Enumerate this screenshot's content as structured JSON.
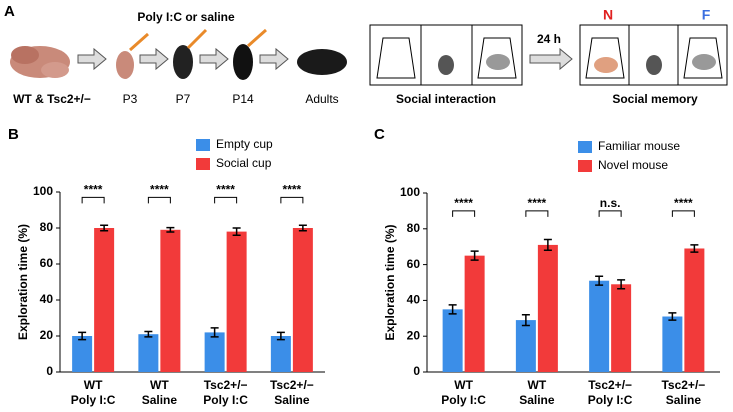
{
  "panel_a": {
    "label": "A",
    "treatment": "Poly I:C or saline",
    "genotype": "WT & Tsc2+/−",
    "ages": [
      "P3",
      "P7",
      "P14",
      "Adults"
    ],
    "interaction": "Social interaction",
    "interval": "24 h",
    "novel": "N",
    "familiar": "F",
    "memory": "Social memory"
  },
  "chart_data": [
    {
      "type": "bar",
      "panel": "B",
      "ylabel": "Exploration time (%)",
      "categories": [
        [
          "WT",
          "Poly I:C"
        ],
        [
          "WT",
          "Saline"
        ],
        [
          "Tsc2+/−",
          "Poly I:C"
        ],
        [
          "Tsc2+/−",
          "Saline"
        ]
      ],
      "series": [
        {
          "name": "Empty cup",
          "color": "#3b8ee8",
          "values": [
            20,
            21,
            22,
            20
          ],
          "errors": [
            2,
            1.5,
            2.5,
            2
          ]
        },
        {
          "name": "Social cup",
          "color": "#f23a3a",
          "values": [
            80,
            79,
            78,
            80
          ],
          "errors": [
            1.5,
            1.2,
            2,
            1.5
          ]
        }
      ],
      "significance": [
        "****",
        "****",
        "****",
        "****"
      ],
      "ylim": [
        0,
        100
      ],
      "yticks": [
        0,
        20,
        40,
        60,
        80,
        100
      ]
    },
    {
      "type": "bar",
      "panel": "C",
      "ylabel": "Exploration time (%)",
      "categories": [
        [
          "WT",
          "Poly I:C"
        ],
        [
          "WT",
          "Saline"
        ],
        [
          "Tsc2+/−",
          "Poly I:C"
        ],
        [
          "Tsc2+/−",
          "Saline"
        ]
      ],
      "series": [
        {
          "name": "Familiar mouse",
          "color": "#3b8ee8",
          "values": [
            35,
            29,
            51,
            31
          ],
          "errors": [
            2.5,
            3,
            2.5,
            2
          ]
        },
        {
          "name": "Novel mouse",
          "color": "#f23a3a",
          "values": [
            65,
            71,
            49,
            69
          ],
          "errors": [
            2.5,
            3,
            2.5,
            2
          ]
        }
      ],
      "significance": [
        "****",
        "****",
        "n.s.",
        "****"
      ],
      "ylim": [
        0,
        100
      ],
      "yticks": [
        0,
        20,
        40,
        60,
        80,
        100
      ]
    }
  ]
}
